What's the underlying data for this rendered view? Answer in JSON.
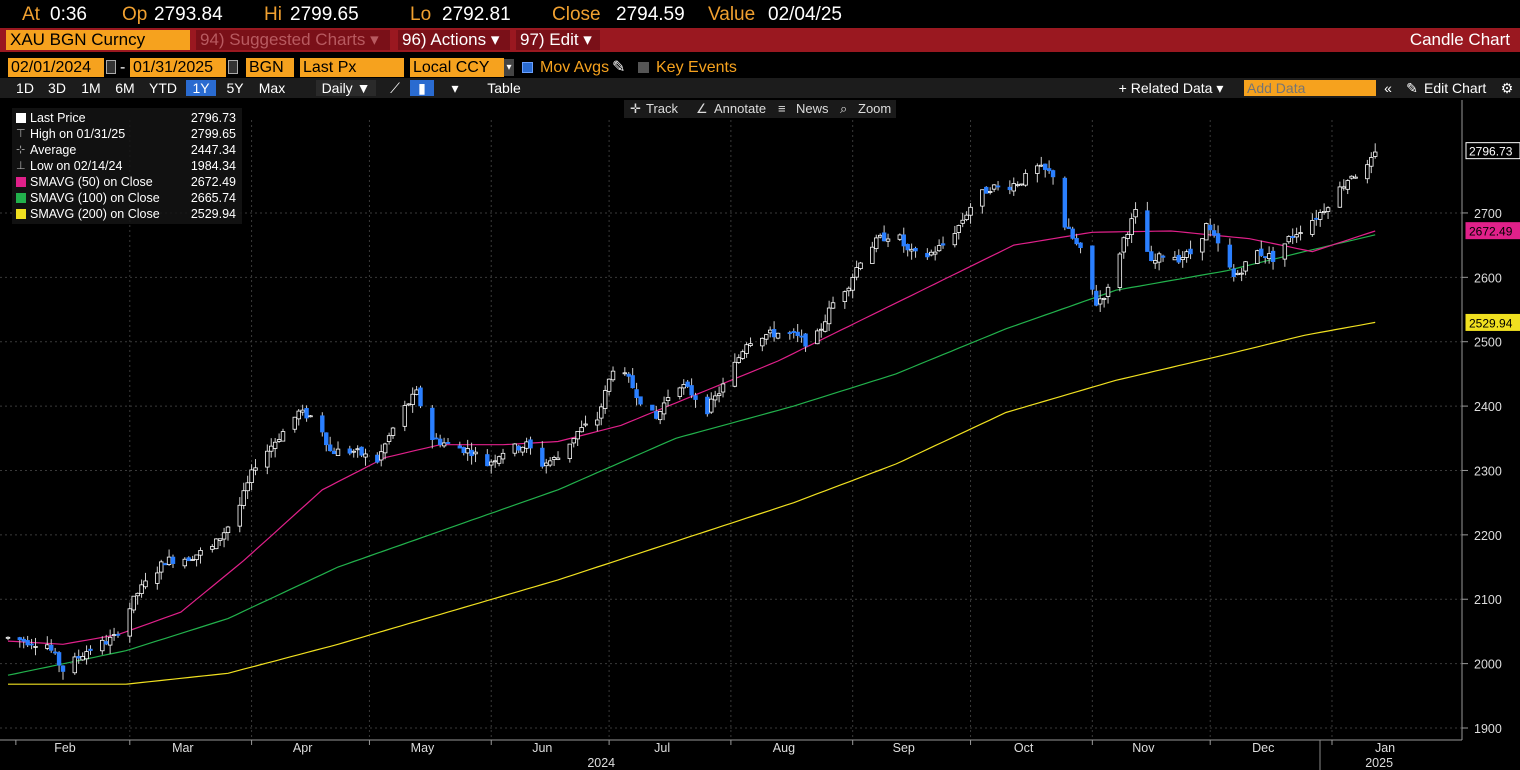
{
  "quote": {
    "at_label": "At",
    "at_value": "0:36",
    "op_label": "Op",
    "op_value": "2793.84",
    "hi_label": "Hi",
    "hi_value": "2799.65",
    "lo_label": "Lo",
    "lo_value": "2792.81",
    "close_label": "Close",
    "close_value": "2794.59",
    "value_label": "Value",
    "value_value": "02/04/25"
  },
  "titlebar": {
    "ticker": "XAU BGN Curncy",
    "suggested": "94) Suggested Charts ▾",
    "actions": "96) Actions ▾",
    "edit": "97) Edit ▾",
    "chart_type": "Candle Chart"
  },
  "settings": {
    "start_date": "02/01/2024",
    "dash": "-",
    "end_date": "01/31/2025",
    "source": "BGN",
    "field": "Last Px",
    "currency": "Local CCY",
    "mov_avgs": "Mov Avgs",
    "key_events": "Key Events"
  },
  "toolbar": {
    "periods": [
      "1D",
      "3D",
      "1M",
      "6M",
      "YTD",
      "1Y",
      "5Y",
      "Max"
    ],
    "selected_period": "1Y",
    "frequency": "Daily ▼",
    "table": "Table",
    "related_data": "+ Related Data ▾",
    "add_data_placeholder": "Add Data",
    "edit_chart": "Edit Chart"
  },
  "plot_tools": {
    "track": "Track",
    "annotate": "Annotate",
    "news": "News",
    "zoom": "Zoom"
  },
  "legend": [
    {
      "name": "Last Price",
      "value": "2796.73",
      "color": "#ffffff",
      "kind": "box"
    },
    {
      "name": "High on 01/31/25",
      "value": "2799.65",
      "color": "#aaaaaa",
      "kind": "high"
    },
    {
      "name": "Average",
      "value": "2447.34",
      "color": "#aaaaaa",
      "kind": "avg"
    },
    {
      "name": "Low on 02/14/24",
      "value": "1984.34",
      "color": "#aaaaaa",
      "kind": "low"
    },
    {
      "name": "SMAVG (50)  on Close",
      "value": "2672.49",
      "color": "#e0208a",
      "kind": "box"
    },
    {
      "name": "SMAVG (100)  on Close",
      "value": "2665.74",
      "color": "#22b14c",
      "kind": "box"
    },
    {
      "name": "SMAVG (200)  on Close",
      "value": "2529.94",
      "color": "#f0e020",
      "kind": "box"
    }
  ],
  "colors": {
    "up": "#ffffff",
    "down": "#2a7fff",
    "sma50": "#e0208a",
    "sma100": "#22b14c",
    "sma200": "#f0e020",
    "accent": "#f6a21e"
  },
  "chart_data": {
    "type": "candlestick",
    "x_range": [
      "2024-02-01",
      "2025-01-31"
    ],
    "ylim": [
      1900,
      2800
    ],
    "y_ticks": [
      1900,
      2000,
      2100,
      2200,
      2300,
      2400,
      2500,
      2600,
      2700
    ],
    "x_month_labels": [
      "Feb",
      "Mar",
      "Apr",
      "May",
      "Jun",
      "Jul",
      "Aug",
      "Sep",
      "Oct",
      "Nov",
      "Dec",
      "Jan"
    ],
    "x_year_labels": [
      "2024",
      "2025"
    ],
    "price_path": [
      [
        0,
        2040
      ],
      [
        10,
        2030
      ],
      [
        14,
        1990
      ],
      [
        20,
        2020
      ],
      [
        27,
        2040
      ],
      [
        33,
        2110
      ],
      [
        40,
        2160
      ],
      [
        46,
        2165
      ],
      [
        52,
        2180
      ],
      [
        58,
        2230
      ],
      [
        63,
        2310
      ],
      [
        70,
        2360
      ],
      [
        74,
        2390
      ],
      [
        79,
        2380
      ],
      [
        82,
        2330
      ],
      [
        88,
        2330
      ],
      [
        94,
        2315
      ],
      [
        100,
        2390
      ],
      [
        104,
        2420
      ],
      [
        108,
        2350
      ],
      [
        112,
        2340
      ],
      [
        118,
        2330
      ],
      [
        122,
        2310
      ],
      [
        126,
        2330
      ],
      [
        132,
        2340
      ],
      [
        136,
        2310
      ],
      [
        140,
        2320
      ],
      [
        145,
        2360
      ],
      [
        150,
        2380
      ],
      [
        154,
        2460
      ],
      [
        158,
        2440
      ],
      [
        162,
        2400
      ],
      [
        165,
        2380
      ],
      [
        170,
        2440
      ],
      [
        174,
        2420
      ],
      [
        178,
        2395
      ],
      [
        183,
        2440
      ],
      [
        188,
        2500
      ],
      [
        192,
        2510
      ],
      [
        198,
        2515
      ],
      [
        203,
        2500
      ],
      [
        206,
        2510
      ],
      [
        210,
        2560
      ],
      [
        214,
        2590
      ],
      [
        218,
        2640
      ],
      [
        222,
        2660
      ],
      [
        226,
        2670
      ],
      [
        229,
        2640
      ],
      [
        233,
        2630
      ],
      [
        238,
        2650
      ],
      [
        242,
        2680
      ],
      [
        246,
        2720
      ],
      [
        250,
        2740
      ],
      [
        254,
        2740
      ],
      [
        258,
        2750
      ],
      [
        262,
        2770
      ],
      [
        266,
        2760
      ],
      [
        269,
        2680
      ],
      [
        273,
        2640
      ],
      [
        277,
        2560
      ],
      [
        280,
        2580
      ],
      [
        284,
        2660
      ],
      [
        287,
        2700
      ],
      [
        291,
        2620
      ],
      [
        295,
        2640
      ],
      [
        298,
        2630
      ],
      [
        302,
        2640
      ],
      [
        305,
        2680
      ],
      [
        308,
        2650
      ],
      [
        312,
        2600
      ],
      [
        315,
        2620
      ],
      [
        318,
        2640
      ],
      [
        322,
        2630
      ],
      [
        326,
        2660
      ],
      [
        330,
        2680
      ],
      [
        334,
        2700
      ],
      [
        338,
        2730
      ],
      [
        342,
        2760
      ],
      [
        345,
        2760
      ],
      [
        348,
        2790
      ]
    ],
    "sma50_path": [
      [
        0,
        2035
      ],
      [
        14,
        2030
      ],
      [
        28,
        2045
      ],
      [
        44,
        2080
      ],
      [
        60,
        2160
      ],
      [
        80,
        2270
      ],
      [
        96,
        2320
      ],
      [
        110,
        2340
      ],
      [
        126,
        2340
      ],
      [
        140,
        2345
      ],
      [
        156,
        2370
      ],
      [
        176,
        2420
      ],
      [
        196,
        2470
      ],
      [
        216,
        2530
      ],
      [
        236,
        2590
      ],
      [
        256,
        2650
      ],
      [
        276,
        2670
      ],
      [
        296,
        2672
      ],
      [
        316,
        2660
      ],
      [
        332,
        2640
      ],
      [
        348,
        2672
      ]
    ],
    "sma100_path": [
      [
        0,
        1982
      ],
      [
        30,
        2020
      ],
      [
        56,
        2070
      ],
      [
        84,
        2150
      ],
      [
        112,
        2210
      ],
      [
        140,
        2270
      ],
      [
        170,
        2350
      ],
      [
        200,
        2400
      ],
      [
        226,
        2450
      ],
      [
        254,
        2520
      ],
      [
        282,
        2580
      ],
      [
        310,
        2610
      ],
      [
        330,
        2640
      ],
      [
        348,
        2666
      ]
    ],
    "sma200_path": [
      [
        0,
        1968
      ],
      [
        30,
        1968
      ],
      [
        56,
        1985
      ],
      [
        84,
        2030
      ],
      [
        112,
        2080
      ],
      [
        140,
        2130
      ],
      [
        170,
        2190
      ],
      [
        200,
        2250
      ],
      [
        226,
        2310
      ],
      [
        254,
        2390
      ],
      [
        282,
        2440
      ],
      [
        310,
        2480
      ],
      [
        330,
        2510
      ],
      [
        348,
        2530
      ]
    ],
    "right_labels": [
      {
        "value": 2796.73,
        "text": "2796.73",
        "color": "#ffffff"
      },
      {
        "value": 2672.49,
        "text": "2672.49",
        "color": "#e0208a"
      },
      {
        "value": 2529.94,
        "text": "2529.94",
        "color": "#f0e020"
      }
    ],
    "grid": true
  }
}
